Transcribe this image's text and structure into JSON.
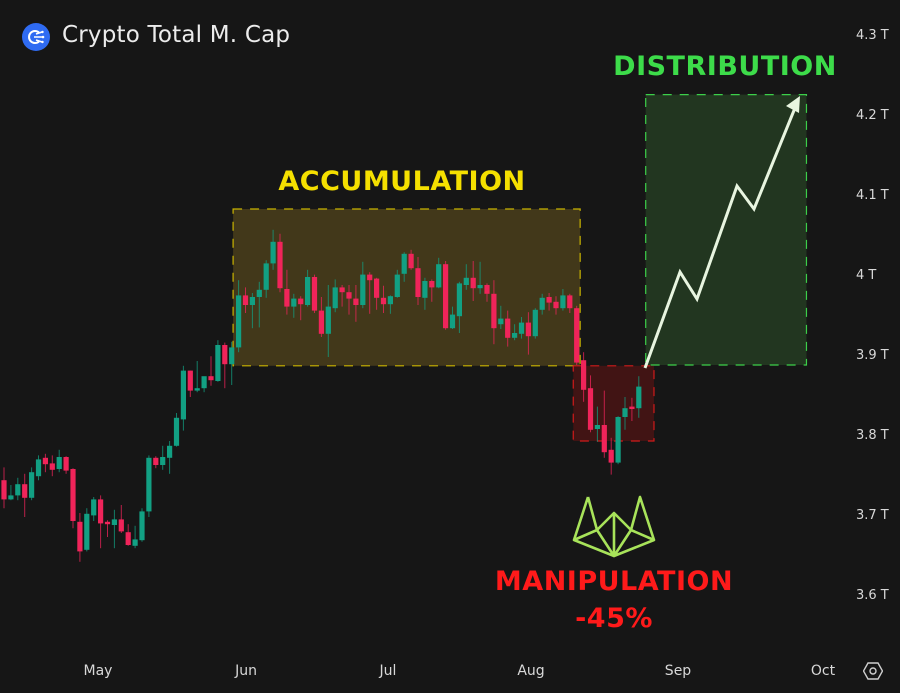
{
  "header": {
    "title": "Crypto Total M. Cap",
    "logo_icon": "crypto-total-market-cap-logo"
  },
  "colors": {
    "background": "#161616",
    "up": "#12a083",
    "down": "#f0245a",
    "accumulation": "#f5e000",
    "distribution": "#3ddc4a",
    "manipulation": "#ff1a1a",
    "arrow": "#e8f5e0",
    "logo_mark": "#a8e35a"
  },
  "chart_data": {
    "type": "candlestick",
    "title": "Crypto Total M. Cap",
    "x_tick_labels": [
      "May",
      "Jun",
      "Jul",
      "Aug",
      "Sep",
      "Oct"
    ],
    "y_tick_labels": [
      "4.3 T",
      "4.2 T",
      "4.1 T",
      "4 T",
      "3.9 T",
      "3.8 T",
      "3.7 T",
      "3.6 T"
    ],
    "y_ticks": [
      4.3,
      4.2,
      4.1,
      4.0,
      3.9,
      3.8,
      3.7,
      3.6
    ],
    "ylim": [
      3.6,
      4.3
    ],
    "y_unit": "T",
    "grid": false,
    "candles_ohlc": [
      [
        3.746,
        3.762,
        3.711,
        3.722
      ],
      [
        3.722,
        3.74,
        3.721,
        3.727
      ],
      [
        3.727,
        3.749,
        3.721,
        3.741
      ],
      [
        3.741,
        3.754,
        3.7,
        3.724
      ],
      [
        3.724,
        3.762,
        3.721,
        3.756
      ],
      [
        3.751,
        3.777,
        3.746,
        3.772
      ],
      [
        3.774,
        3.779,
        3.756,
        3.766
      ],
      [
        3.767,
        3.777,
        3.751,
        3.759
      ],
      [
        3.76,
        3.784,
        3.756,
        3.775
      ],
      [
        3.775,
        3.776,
        3.754,
        3.758
      ],
      [
        3.76,
        3.761,
        3.686,
        3.695
      ],
      [
        3.694,
        3.705,
        3.644,
        3.657
      ],
      [
        3.659,
        3.711,
        3.657,
        3.704
      ],
      [
        3.702,
        3.725,
        3.695,
        3.722
      ],
      [
        3.722,
        3.727,
        3.661,
        3.692
      ],
      [
        3.694,
        3.696,
        3.675,
        3.691
      ],
      [
        3.69,
        3.709,
        3.661,
        3.697
      ],
      [
        3.697,
        3.715,
        3.68,
        3.682
      ],
      [
        3.681,
        3.691,
        3.664,
        3.665
      ],
      [
        3.664,
        3.689,
        3.661,
        3.672
      ],
      [
        3.671,
        3.711,
        3.669,
        3.707
      ],
      [
        3.707,
        3.777,
        3.7,
        3.774
      ],
      [
        3.774,
        3.776,
        3.761,
        3.765
      ],
      [
        3.765,
        3.789,
        3.759,
        3.775
      ],
      [
        3.774,
        3.795,
        3.754,
        3.789
      ],
      [
        3.789,
        3.83,
        3.788,
        3.824
      ],
      [
        3.822,
        3.889,
        3.808,
        3.883
      ],
      [
        3.883,
        3.883,
        3.85,
        3.858
      ],
      [
        3.858,
        3.895,
        3.856,
        3.861
      ],
      [
        3.861,
        3.871,
        3.856,
        3.876
      ],
      [
        3.876,
        3.901,
        3.864,
        3.871
      ],
      [
        3.87,
        3.921,
        3.869,
        3.915
      ],
      [
        3.915,
        3.918,
        3.861,
        3.891
      ],
      [
        3.891,
        3.919,
        3.865,
        3.912
      ],
      [
        3.912,
        3.996,
        3.906,
        3.977
      ],
      [
        3.977,
        3.987,
        3.955,
        3.965
      ],
      [
        3.965,
        3.98,
        3.936,
        3.975
      ],
      [
        3.975,
        3.994,
        3.937,
        3.984
      ],
      [
        3.984,
        4.021,
        3.974,
        4.017
      ],
      [
        4.017,
        4.059,
        4.009,
        4.044
      ],
      [
        4.044,
        4.054,
        3.981,
        3.986
      ],
      [
        3.985,
        4.009,
        3.953,
        3.963
      ],
      [
        3.963,
        3.979,
        3.949,
        3.973
      ],
      [
        3.973,
        3.976,
        3.946,
        3.966
      ],
      [
        3.965,
        4.009,
        3.963,
        4.0
      ],
      [
        4.0,
        4.003,
        3.955,
        3.958
      ],
      [
        3.958,
        3.975,
        3.925,
        3.929
      ],
      [
        3.929,
        3.99,
        3.9,
        3.963
      ],
      [
        3.961,
        3.997,
        3.956,
        3.987
      ],
      [
        3.987,
        3.99,
        3.963,
        3.981
      ],
      [
        3.981,
        3.99,
        3.953,
        3.973
      ],
      [
        3.973,
        3.99,
        3.944,
        3.965
      ],
      [
        3.965,
        4.019,
        3.961,
        4.003
      ],
      [
        4.003,
        4.006,
        3.954,
        3.996
      ],
      [
        3.998,
        3.999,
        3.959,
        3.974
      ],
      [
        3.974,
        3.989,
        3.955,
        3.966
      ],
      [
        3.966,
        3.977,
        3.954,
        3.976
      ],
      [
        3.975,
        4.009,
        3.974,
        4.003
      ],
      [
        4.004,
        4.031,
        3.994,
        4.029
      ],
      [
        4.029,
        4.034,
        4.009,
        4.011
      ],
      [
        4.011,
        4.025,
        3.965,
        3.975
      ],
      [
        3.974,
        3.999,
        3.959,
        3.995
      ],
      [
        3.995,
        3.997,
        3.969,
        3.987
      ],
      [
        3.987,
        4.024,
        3.986,
        4.016
      ],
      [
        4.016,
        4.02,
        3.934,
        3.936
      ],
      [
        3.936,
        3.963,
        3.935,
        3.953
      ],
      [
        3.951,
        3.994,
        3.93,
        3.992
      ],
      [
        3.99,
        4.016,
        3.984,
        3.999
      ],
      [
        3.999,
        4.02,
        3.97,
        3.986
      ],
      [
        3.986,
        4.019,
        3.979,
        3.99
      ],
      [
        3.99,
        3.992,
        3.969,
        3.979
      ],
      [
        3.979,
        3.996,
        3.916,
        3.936
      ],
      [
        3.941,
        3.964,
        3.935,
        3.948
      ],
      [
        3.948,
        3.958,
        3.913,
        3.924
      ],
      [
        3.924,
        3.941,
        3.921,
        3.93
      ],
      [
        3.929,
        3.95,
        3.923,
        3.943
      ],
      [
        3.943,
        3.956,
        3.903,
        3.926
      ],
      [
        3.926,
        3.961,
        3.923,
        3.959
      ],
      [
        3.959,
        3.979,
        3.953,
        3.974
      ],
      [
        3.975,
        3.98,
        3.958,
        3.968
      ],
      [
        3.969,
        3.976,
        3.953,
        3.961
      ],
      [
        3.961,
        3.985,
        3.958,
        3.977
      ],
      [
        3.977,
        3.979,
        3.955,
        3.961
      ],
      [
        3.961,
        3.964,
        3.89,
        3.893
      ],
      [
        3.896,
        3.906,
        3.844,
        3.859
      ],
      [
        3.861,
        3.877,
        3.806,
        3.809
      ],
      [
        3.81,
        3.838,
        3.794,
        3.815
      ],
      [
        3.815,
        3.858,
        3.774,
        3.781
      ],
      [
        3.784,
        3.799,
        3.753,
        3.768
      ],
      [
        3.768,
        3.826,
        3.766,
        3.825
      ],
      [
        3.825,
        3.85,
        3.809,
        3.836
      ],
      [
        3.838,
        3.849,
        3.82,
        3.835
      ],
      [
        3.836,
        3.876,
        3.824,
        3.863
      ]
    ],
    "annotations": {
      "accumulation": {
        "label": "ACCUMULATION",
        "range": [
          3.889,
          4.085
        ]
      },
      "manipulation": {
        "label": "MANIPULATION",
        "change": "-45%",
        "range": [
          3.795,
          3.889
        ]
      },
      "distribution": {
        "label": "DISTRIBUTION",
        "range": [
          3.89,
          4.228
        ]
      }
    }
  },
  "footer": {
    "settings_icon": "hexagon-settings-icon"
  }
}
